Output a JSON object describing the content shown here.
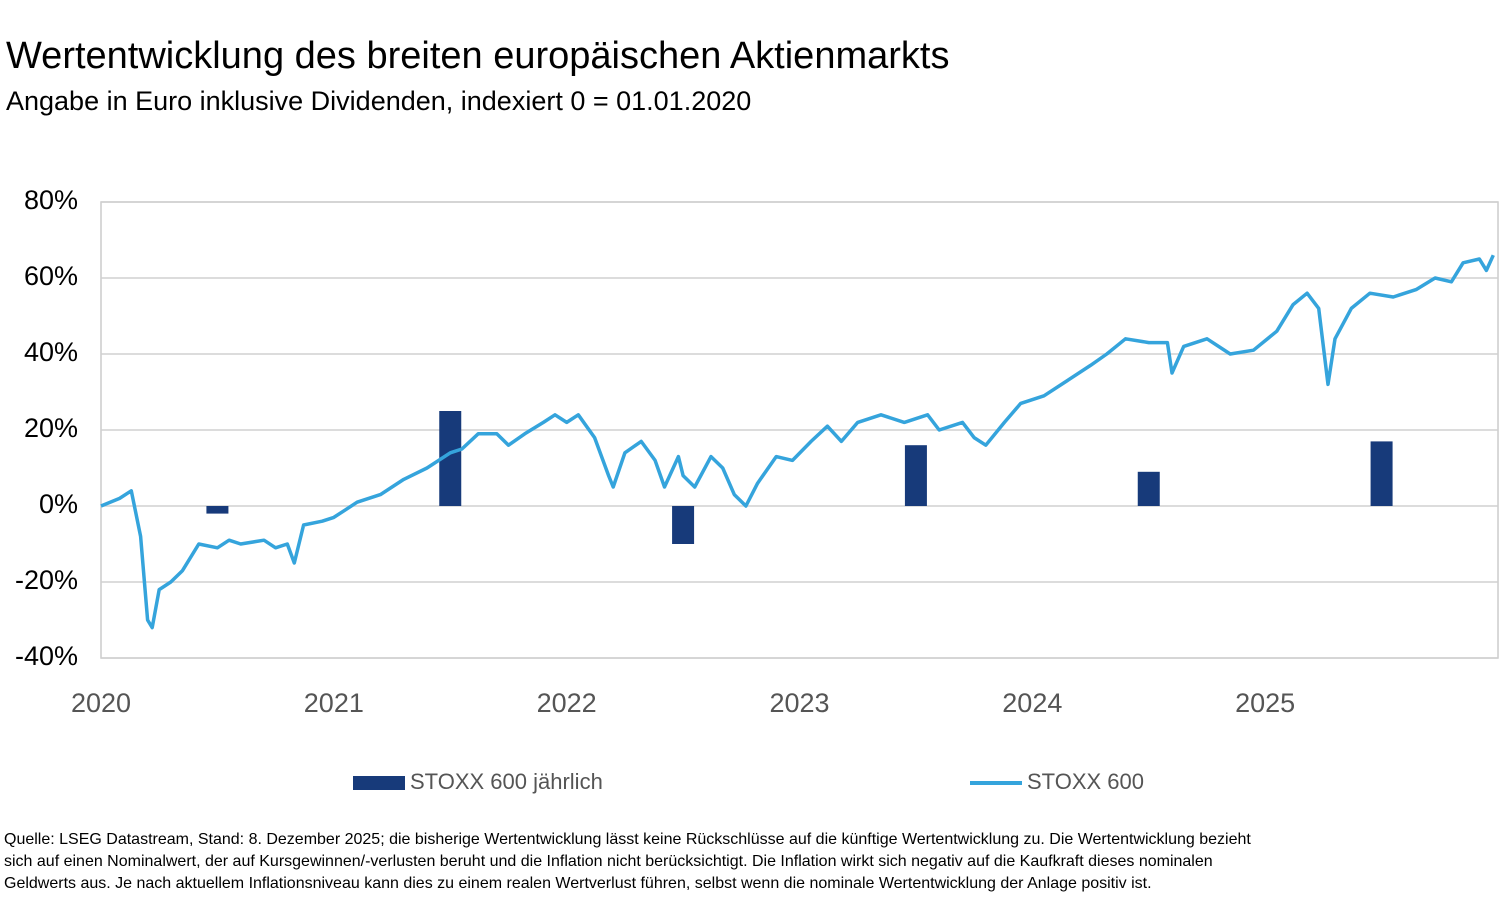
{
  "chart_data": {
    "type": "combo",
    "title": "Wertentwicklung des breiten europäischen Aktienmarkts",
    "subtitle": "Angabe in Euro inklusive Dividenden, indexiert 0 = 01.01.2020",
    "xlim": [
      2020,
      2026
    ],
    "xticks": [
      2020,
      2021,
      2022,
      2023,
      2024,
      2025
    ],
    "ylim": [
      -40,
      80
    ],
    "yticks": [
      {
        "value": -40,
        "label": "-40%"
      },
      {
        "value": -20,
        "label": "-20%"
      },
      {
        "value": 0,
        "label": "0%"
      },
      {
        "value": 20,
        "label": "20%"
      },
      {
        "value": 40,
        "label": "40%"
      },
      {
        "value": 60,
        "label": "60%"
      },
      {
        "value": 80,
        "label": "80%"
      }
    ],
    "grid": true,
    "legend": "bottom",
    "series": [
      {
        "name": "STOXX 600 jährlich",
        "type": "bar",
        "color": "#173a7a",
        "x": [
          2020.5,
          2021.5,
          2022.5,
          2023.5,
          2024.5,
          2025.5
        ],
        "values": [
          -2,
          25,
          -10,
          16,
          9,
          17
        ]
      },
      {
        "name": "STOXX 600",
        "type": "line",
        "color": "#35a4dc",
        "x": [
          2020.0,
          2020.08,
          2020.13,
          2020.17,
          2020.2,
          2020.22,
          2020.25,
          2020.3,
          2020.35,
          2020.42,
          2020.5,
          2020.55,
          2020.6,
          2020.7,
          2020.75,
          2020.8,
          2020.83,
          2020.87,
          2020.95,
          2021.0,
          2021.05,
          2021.1,
          2021.2,
          2021.3,
          2021.4,
          2021.5,
          2021.55,
          2021.62,
          2021.7,
          2021.75,
          2021.82,
          2021.9,
          2021.95,
          2022.0,
          2022.05,
          2022.12,
          2022.18,
          2022.2,
          2022.25,
          2022.32,
          2022.38,
          2022.42,
          2022.48,
          2022.5,
          2022.55,
          2022.62,
          2022.67,
          2022.72,
          2022.77,
          2022.82,
          2022.9,
          2022.97,
          2023.05,
          2023.12,
          2023.18,
          2023.25,
          2023.35,
          2023.45,
          2023.55,
          2023.6,
          2023.7,
          2023.75,
          2023.8,
          2023.88,
          2023.95,
          2024.05,
          2024.15,
          2024.25,
          2024.32,
          2024.4,
          2024.5,
          2024.58,
          2024.6,
          2024.65,
          2024.75,
          2024.85,
          2024.95,
          2025.05,
          2025.12,
          2025.18,
          2025.23,
          2025.27,
          2025.3,
          2025.37,
          2025.45,
          2025.55,
          2025.65,
          2025.73,
          2025.8,
          2025.85,
          2025.92,
          2025.95,
          2025.98
        ],
        "values": [
          0,
          2,
          4,
          -8,
          -30,
          -32,
          -22,
          -20,
          -17,
          -10,
          -11,
          -9,
          -10,
          -9,
          -11,
          -10,
          -15,
          -5,
          -4,
          -3,
          -1,
          1,
          3,
          7,
          10,
          14,
          15,
          19,
          19,
          16,
          19,
          22,
          24,
          22,
          24,
          18,
          8,
          5,
          14,
          17,
          12,
          5,
          13,
          8,
          5,
          13,
          10,
          3,
          0,
          6,
          13,
          12,
          17,
          21,
          17,
          22,
          24,
          22,
          24,
          20,
          22,
          18,
          16,
          22,
          27,
          29,
          33,
          37,
          40,
          44,
          43,
          43,
          35,
          42,
          44,
          40,
          41,
          46,
          53,
          56,
          52,
          32,
          44,
          52,
          56,
          55,
          57,
          60,
          59,
          64,
          65,
          62,
          66
        ]
      }
    ],
    "footnote": [
      "Quelle: LSEG Datastream, Stand: 8. Dezember 2025; die bisherige Wertentwicklung lässt keine Rückschlüsse auf die künftige Wertentwicklung zu. Die Wertentwicklung bezieht",
      "sich auf einen Nominalwert, der auf Kursgewinnen/-verlusten beruht und die Inflation nicht berücksichtigt. Die Inflation wirkt sich negativ auf die Kaufkraft dieses nominalen",
      "Geldwerts aus. Je nach aktuellem Inflationsniveau kann dies zu einem realen Wertverlust führen, selbst wenn die nominale Wertentwicklung der Anlage positiv ist."
    ]
  }
}
